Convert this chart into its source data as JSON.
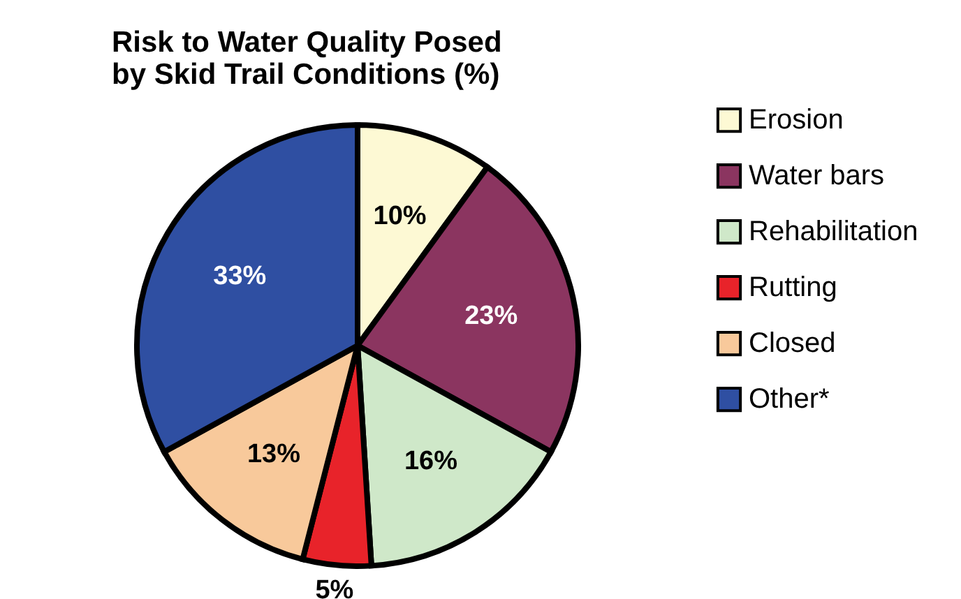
{
  "chart_data": {
    "type": "pie",
    "title": "Risk to Water Quality Posed by Skid Trail Conditions (%)",
    "categories": [
      "Erosion",
      "Water bars",
      "Rehabilitation",
      "Rutting",
      "Closed",
      "Other*"
    ],
    "values": [
      10,
      23,
      16,
      5,
      13,
      33
    ],
    "colors": [
      "#fdf9d4",
      "#8b3560",
      "#cfe8c9",
      "#e8232a",
      "#f8c99b",
      "#2f4fa2"
    ],
    "value_labels": [
      "10%",
      "23%",
      "16%",
      "5%",
      "13%",
      "33%"
    ],
    "legend": "right"
  }
}
